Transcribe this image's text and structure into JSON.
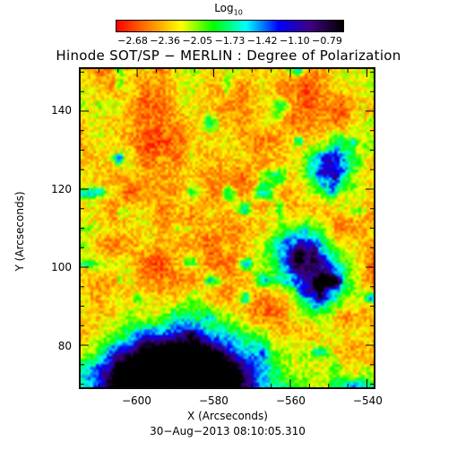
{
  "colorbar": {
    "title": "Log",
    "title_subscript": "10",
    "ticks": [
      "−2.68",
      "−2.36",
      "−2.05",
      "−1.73",
      "−1.42",
      "−1.10",
      "−0.79"
    ],
    "range": [
      -2.68,
      -0.79
    ],
    "colors": [
      "#ff0000",
      "#ff8000",
      "#ffff00",
      "#00ff00",
      "#00ffff",
      "#0000ff",
      "#400080",
      "#000000"
    ]
  },
  "chart_data": {
    "type": "heatmap",
    "title": "Hinode SOT/SP − MERLIN : Degree of Polarization",
    "xlabel": "X (Arcseconds)",
    "ylabel": "Y (Arcseconds)",
    "xlim": [
      -615,
      -538
    ],
    "ylim": [
      69,
      151
    ],
    "xticks": [
      "−600",
      "−580",
      "−560",
      "−540"
    ],
    "yticks": [
      "80",
      "100",
      "120",
      "140"
    ],
    "xtick_values": [
      -600,
      -580,
      -560,
      -540
    ],
    "ytick_values": [
      80,
      100,
      120,
      140
    ],
    "features": [
      {
        "label": "dark core",
        "x": -596,
        "y": 70,
        "value": -0.79
      },
      {
        "label": "dark core",
        "x": -583,
        "y": 70,
        "value": -0.85
      },
      {
        "label": "network patch",
        "x": -557,
        "y": 103,
        "value": -1.2
      },
      {
        "label": "network patch",
        "x": -549,
        "y": 126,
        "value": -1.3
      },
      {
        "label": "network patch",
        "x": -552,
        "y": 95,
        "value": -1.35
      }
    ]
  },
  "timestamp": "30−Aug−2013 08:10:05.310"
}
